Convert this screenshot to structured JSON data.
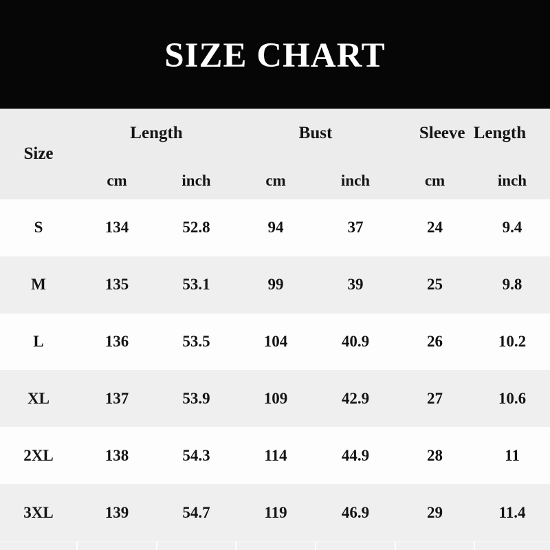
{
  "banner": {
    "title": "SIZE CHART"
  },
  "table": {
    "size_label": "Size",
    "groups": [
      {
        "label": "Length"
      },
      {
        "label": "Bust"
      },
      {
        "label": "Sleeve Length"
      }
    ],
    "units": [
      "cm",
      "inch",
      "cm",
      "inch",
      "cm",
      "inch"
    ],
    "rows": [
      {
        "size": "S",
        "values": [
          "134",
          "52.8",
          "94",
          "37",
          "24",
          "9.4"
        ]
      },
      {
        "size": "M",
        "values": [
          "135",
          "53.1",
          "99",
          "39",
          "25",
          "9.8"
        ]
      },
      {
        "size": "L",
        "values": [
          "136",
          "53.5",
          "104",
          "40.9",
          "26",
          "10.2"
        ]
      },
      {
        "size": "XL",
        "values": [
          "137",
          "53.9",
          "109",
          "42.9",
          "27",
          "10.6"
        ]
      },
      {
        "size": "2XL",
        "values": [
          "138",
          "54.3",
          "114",
          "44.9",
          "28",
          "11"
        ]
      },
      {
        "size": "3XL",
        "values": [
          "139",
          "54.7",
          "119",
          "46.9",
          "29",
          "11.4"
        ]
      }
    ]
  },
  "colors": {
    "banner_bg": "#060606",
    "banner_text": "#ffffff",
    "header_bg": "#edecec",
    "row_white": "#fdfdfd",
    "row_gray": "#f0efef",
    "text": "#141414"
  },
  "chart_data": {
    "type": "table",
    "title": "SIZE CHART",
    "columns": [
      "Size",
      "Length cm",
      "Length inch",
      "Bust cm",
      "Bust inch",
      "Sleeve Length cm",
      "Sleeve Length inch"
    ],
    "rows": [
      [
        "S",
        134,
        52.8,
        94,
        37,
        24,
        9.4
      ],
      [
        "M",
        135,
        53.1,
        99,
        39,
        25,
        9.8
      ],
      [
        "L",
        136,
        53.5,
        104,
        40.9,
        26,
        10.2
      ],
      [
        "XL",
        137,
        53.9,
        109,
        42.9,
        27,
        10.6
      ],
      [
        "2XL",
        138,
        54.3,
        114,
        44.9,
        28,
        11
      ],
      [
        "3XL",
        139,
        54.7,
        119,
        46.9,
        29,
        11.4
      ]
    ]
  }
}
